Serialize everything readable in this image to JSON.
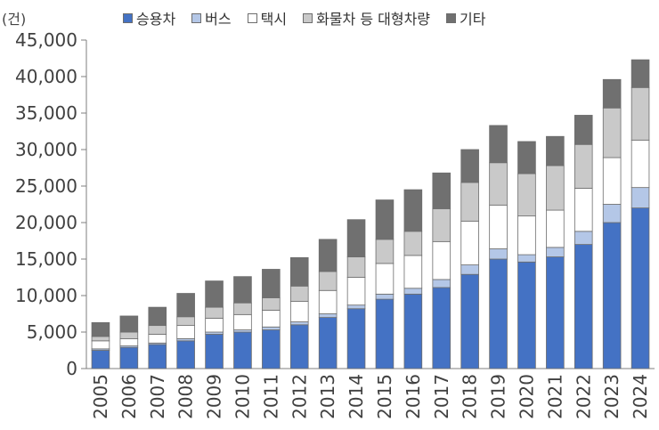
{
  "chart_data": {
    "type": "bar",
    "stacked": true,
    "unit_label": "(건)",
    "title": "",
    "xlabel": "",
    "ylabel": "",
    "ylim": [
      0,
      45000
    ],
    "yticks": [
      "0",
      "5,000",
      "10,000",
      "15,000",
      "20,000",
      "25,000",
      "30,000",
      "35,000",
      "40,000",
      "45,000"
    ],
    "grid": false,
    "legend_position": "top",
    "categories": [
      "2005",
      "2006",
      "2007",
      "2008",
      "2009",
      "2010",
      "2011",
      "2012",
      "2013",
      "2014",
      "2015",
      "2016",
      "2017",
      "2018",
      "2019",
      "2020",
      "2021",
      "2022",
      "2023",
      "2024"
    ],
    "series": [
      {
        "name": "승용차",
        "color": "#4472c4",
        "values": [
          2500,
          2900,
          3300,
          3800,
          4700,
          5000,
          5300,
          6000,
          7000,
          8200,
          9500,
          10200,
          11100,
          12900,
          15000,
          14600,
          15300,
          17000,
          20000,
          22000
        ]
      },
      {
        "name": "버스",
        "color": "#b4c7e7",
        "values": [
          200,
          200,
          200,
          300,
          300,
          300,
          400,
          400,
          500,
          500,
          700,
          800,
          1100,
          1300,
          1400,
          1000,
          1300,
          1800,
          2500,
          2800
        ]
      },
      {
        "name": "택시",
        "color": "#ffffff",
        "values": [
          1100,
          1000,
          1200,
          1800,
          1900,
          2100,
          2300,
          2800,
          3200,
          3800,
          4200,
          4500,
          5200,
          6000,
          6000,
          5300,
          5100,
          5900,
          6400,
          6500
        ]
      },
      {
        "name": "화물차 등 대형차량",
        "color": "#c9c9c9",
        "values": [
          600,
          900,
          1200,
          1200,
          1500,
          1600,
          1700,
          2100,
          2600,
          2800,
          3300,
          3300,
          4500,
          5300,
          5800,
          5800,
          6100,
          6000,
          6800,
          7200
        ]
      },
      {
        "name": "기타",
        "color": "#707070",
        "values": [
          1900,
          2200,
          2500,
          3200,
          3600,
          3600,
          3900,
          3900,
          4400,
          5100,
          5400,
          5700,
          4900,
          4500,
          5100,
          4400,
          4000,
          4000,
          3900,
          3800
        ]
      }
    ]
  }
}
